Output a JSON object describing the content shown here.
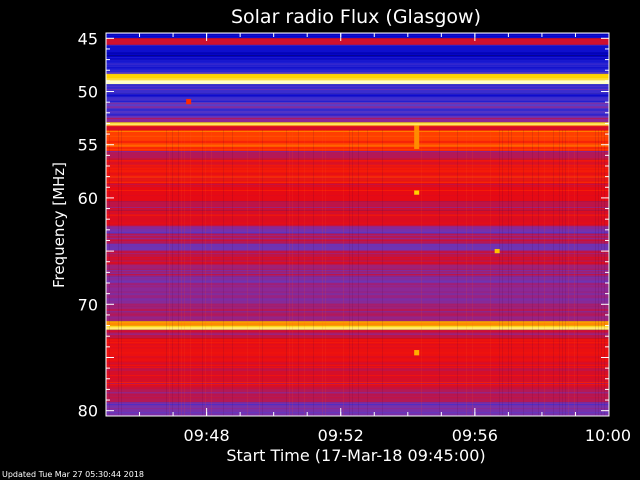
{
  "chart_data": {
    "type": "heatmap",
    "title": "Solar radio Flux (Glasgow)",
    "xlabel": "Start Time (17-Mar-18 09:45:00)",
    "ylabel": "Frequency [MHz]",
    "x_range_minutes": [
      0,
      15
    ],
    "x_ticks": [
      {
        "label": "09:48",
        "minute": 3
      },
      {
        "label": "09:52",
        "minute": 7
      },
      {
        "label": "09:56",
        "minute": 11
      },
      {
        "label": "10:00",
        "minute": 15
      }
    ],
    "ylim": [
      44.5,
      80.5
    ],
    "y_ticks": [
      45,
      50,
      55,
      60,
      65,
      70,
      75,
      80
    ],
    "y_tick_labels": [
      "45",
      "50",
      "55",
      "60",
      "",
      "70",
      "",
      "80"
    ],
    "y_inverted": true,
    "colormap": [
      "#0a0a3c",
      "#0000c8",
      "#1e1ed2",
      "#5a3cc8",
      "#8c2896",
      "#be1446",
      "#e60a14",
      "#ff2a00",
      "#ff8c00",
      "#ffd200",
      "#ffffc8"
    ],
    "bands": [
      {
        "f0": 44.5,
        "f1": 45.0,
        "level": 0.15
      },
      {
        "f0": 45.0,
        "f1": 45.6,
        "level": 0.55
      },
      {
        "f0": 45.6,
        "f1": 46.3,
        "level": 0.15
      },
      {
        "f0": 46.3,
        "f1": 47.0,
        "level": 0.12
      },
      {
        "f0": 47.0,
        "f1": 47.7,
        "level": 0.2
      },
      {
        "f0": 47.7,
        "f1": 48.3,
        "level": 0.22
      },
      {
        "f0": 48.3,
        "f1": 48.9,
        "level": 0.9
      },
      {
        "f0": 48.9,
        "f1": 49.3,
        "level": 1.0
      },
      {
        "f0": 49.3,
        "f1": 50.2,
        "level": 0.25
      },
      {
        "f0": 50.2,
        "f1": 51.0,
        "level": 0.22
      },
      {
        "f0": 51.0,
        "f1": 51.6,
        "level": 0.3
      },
      {
        "f0": 51.6,
        "f1": 52.4,
        "level": 0.26
      },
      {
        "f0": 52.4,
        "f1": 52.9,
        "level": 0.4
      },
      {
        "f0": 52.9,
        "f1": 53.2,
        "level": 0.95
      },
      {
        "f0": 53.2,
        "f1": 53.6,
        "level": 0.55
      },
      {
        "f0": 53.6,
        "f1": 55.6,
        "level": 0.72
      },
      {
        "f0": 55.6,
        "f1": 56.4,
        "level": 0.48
      },
      {
        "f0": 56.4,
        "f1": 58.5,
        "level": 0.64
      },
      {
        "f0": 58.5,
        "f1": 60.3,
        "level": 0.6
      },
      {
        "f0": 60.3,
        "f1": 61.2,
        "level": 0.5
      },
      {
        "f0": 61.2,
        "f1": 62.6,
        "level": 0.58
      },
      {
        "f0": 62.6,
        "f1": 63.3,
        "level": 0.38
      },
      {
        "f0": 63.3,
        "f1": 64.3,
        "level": 0.48
      },
      {
        "f0": 64.3,
        "f1": 64.9,
        "level": 0.34
      },
      {
        "f0": 64.9,
        "f1": 66.2,
        "level": 0.5
      },
      {
        "f0": 66.2,
        "f1": 67.4,
        "level": 0.44
      },
      {
        "f0": 67.4,
        "f1": 68.8,
        "level": 0.4
      },
      {
        "f0": 68.8,
        "f1": 70.2,
        "level": 0.42
      },
      {
        "f0": 70.2,
        "f1": 71.6,
        "level": 0.44
      },
      {
        "f0": 71.6,
        "f1": 72.0,
        "level": 0.8
      },
      {
        "f0": 72.0,
        "f1": 72.4,
        "level": 0.9
      },
      {
        "f0": 72.4,
        "f1": 73.2,
        "level": 0.5
      },
      {
        "f0": 73.2,
        "f1": 75.8,
        "level": 0.62
      },
      {
        "f0": 75.8,
        "f1": 77.8,
        "level": 0.56
      },
      {
        "f0": 77.8,
        "f1": 79.2,
        "level": 0.48
      },
      {
        "f0": 79.2,
        "f1": 80.5,
        "level": 0.36
      }
    ],
    "bursts": [
      {
        "minute": 2.45,
        "f0": 50.7,
        "f1": 51.2,
        "level": 0.7
      },
      {
        "minute": 9.25,
        "f0": 53.2,
        "f1": 55.4,
        "level": 0.8
      },
      {
        "minute": 9.25,
        "f0": 59.3,
        "f1": 59.7,
        "level": 0.9
      },
      {
        "minute": 11.65,
        "f0": 64.8,
        "f1": 65.2,
        "level": 0.88
      },
      {
        "minute": 9.25,
        "f0": 74.3,
        "f1": 74.8,
        "level": 0.85
      }
    ]
  },
  "footer_text": "Updated Tue Mar 27 05:30:44 2018"
}
